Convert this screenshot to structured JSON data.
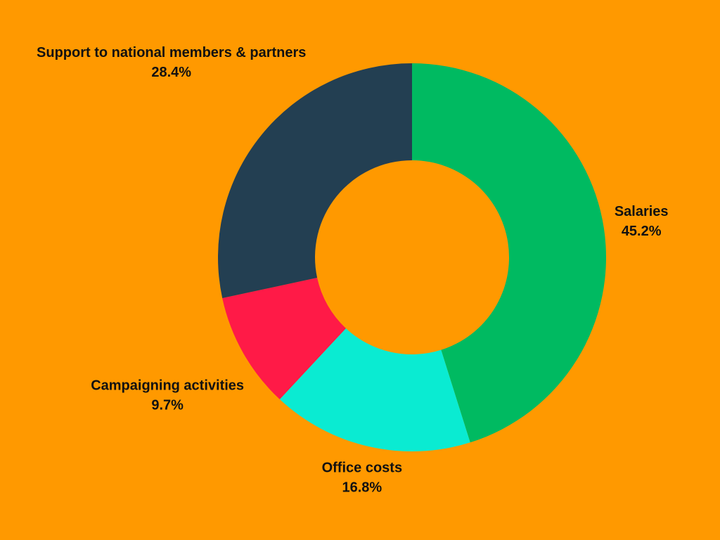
{
  "chart_data": {
    "type": "donut",
    "categories": [
      "Salaries",
      "Office costs",
      "Campaigning activities",
      "Support to national members & partners"
    ],
    "values": [
      45.2,
      16.8,
      9.7,
      28.4
    ],
    "value_labels": [
      "45.2%",
      "16.8%",
      "9.7%",
      "28.4%"
    ],
    "colors": [
      "#00ba61",
      "#0aebd2",
      "#ff1a47",
      "#233f52"
    ]
  }
}
